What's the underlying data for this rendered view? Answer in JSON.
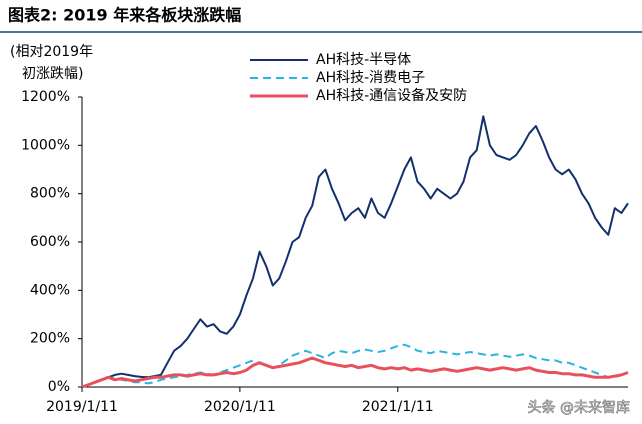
{
  "chart_data": {
    "type": "line",
    "title": "图表2:  2019 年来各板块涨跌幅",
    "ylabel": [
      "(相对2019年",
      "初涨跌幅)"
    ],
    "watermark": "头条 @未来智库",
    "legend": "upper center",
    "categories": [
      "2019/1/11",
      null,
      null,
      null,
      null,
      null,
      null,
      null,
      null,
      null,
      null,
      null,
      null,
      null,
      null,
      null,
      null,
      null,
      null,
      null,
      null,
      null,
      null,
      null,
      "2020/1/11",
      null,
      null,
      null,
      null,
      null,
      null,
      null,
      null,
      null,
      null,
      null,
      null,
      null,
      null,
      null,
      null,
      null,
      null,
      null,
      null,
      null,
      null,
      null,
      "2021/1/11",
      null,
      null,
      null,
      null,
      null,
      null,
      null,
      null,
      null,
      null,
      null,
      null,
      null,
      null,
      null,
      null,
      null,
      null,
      null,
      null,
      null,
      null,
      null,
      null,
      null,
      null,
      null,
      null,
      null,
      null,
      null,
      null,
      null,
      null,
      null
    ],
    "series": [
      {
        "name": "AH科技-半导体",
        "color": "#12306e",
        "style": "solid",
        "values": [
          0,
          10,
          20,
          30,
          40,
          50,
          55,
          50,
          45,
          42,
          40,
          45,
          50,
          100,
          150,
          170,
          200,
          240,
          280,
          250,
          260,
          230,
          220,
          250,
          300,
          380,
          450,
          560,
          500,
          420,
          450,
          520,
          600,
          620,
          700,
          750,
          870,
          900,
          820,
          760,
          690,
          720,
          740,
          700,
          780,
          720,
          700,
          760,
          830,
          900,
          950,
          850,
          820,
          780,
          820,
          800,
          780,
          800,
          850,
          950,
          980,
          1120,
          1000,
          960,
          950,
          940,
          960,
          1000,
          1050,
          1080,
          1020,
          950,
          900,
          880,
          900,
          860,
          800,
          760,
          700,
          660,
          630,
          740,
          720,
          760
        ]
      },
      {
        "name": "AH科技-消费电子",
        "color": "#2bb3e3",
        "style": "dashed",
        "values": [
          0,
          10,
          20,
          30,
          40,
          35,
          30,
          25,
          20,
          20,
          15,
          20,
          30,
          35,
          40,
          45,
          50,
          55,
          60,
          55,
          50,
          60,
          70,
          80,
          90,
          100,
          110,
          100,
          90,
          80,
          90,
          110,
          130,
          140,
          150,
          140,
          130,
          120,
          140,
          150,
          145,
          140,
          150,
          155,
          150,
          145,
          150,
          160,
          170,
          175,
          165,
          150,
          145,
          140,
          150,
          145,
          140,
          135,
          140,
          145,
          140,
          135,
          130,
          135,
          130,
          125,
          130,
          135,
          130,
          120,
          115,
          110,
          110,
          100,
          100,
          90,
          80,
          70,
          60,
          50,
          40,
          40,
          50,
          60
        ]
      },
      {
        "name": "AH科技-通信设备及安防",
        "color": "#e8505b",
        "style": "solid",
        "values": [
          0,
          10,
          20,
          30,
          40,
          30,
          35,
          30,
          25,
          30,
          35,
          40,
          40,
          45,
          50,
          50,
          45,
          50,
          55,
          50,
          50,
          55,
          60,
          55,
          60,
          70,
          90,
          100,
          90,
          80,
          85,
          90,
          95,
          100,
          110,
          120,
          110,
          100,
          95,
          90,
          85,
          90,
          80,
          85,
          90,
          80,
          75,
          80,
          75,
          80,
          70,
          75,
          70,
          65,
          70,
          75,
          70,
          65,
          70,
          75,
          80,
          75,
          70,
          75,
          80,
          75,
          70,
          75,
          80,
          70,
          65,
          60,
          60,
          55,
          55,
          50,
          50,
          45,
          40,
          40,
          40,
          45,
          50,
          60
        ]
      }
    ],
    "ylim": [
      0,
      1200
    ],
    "yticks": [
      {
        "value": 0,
        "label": "0%"
      },
      {
        "value": 200,
        "label": "200%"
      },
      {
        "value": 400,
        "label": "400%"
      },
      {
        "value": 600,
        "label": "600%"
      },
      {
        "value": 800,
        "label": "800%"
      },
      {
        "value": 1000,
        "label": "1000%"
      },
      {
        "value": 1200,
        "label": "1200%"
      }
    ]
  }
}
